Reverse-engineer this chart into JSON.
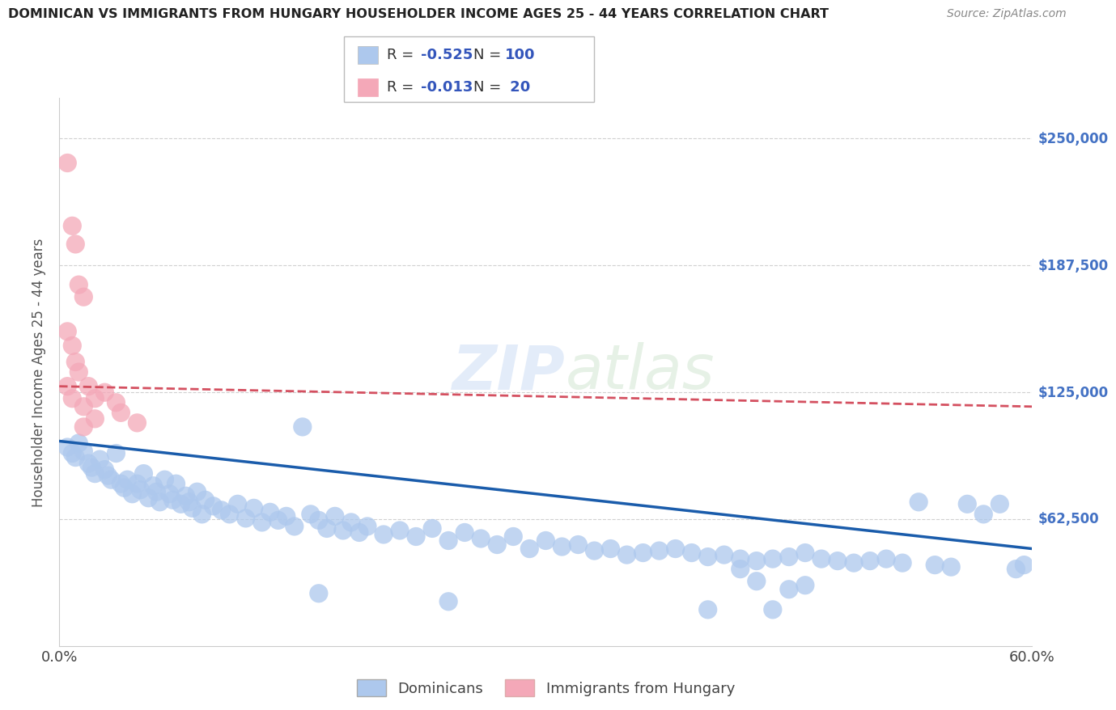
{
  "title": "DOMINICAN VS IMMIGRANTS FROM HUNGARY HOUSEHOLDER INCOME AGES 25 - 44 YEARS CORRELATION CHART",
  "source": "Source: ZipAtlas.com",
  "ylabel": "Householder Income Ages 25 - 44 years",
  "xlim": [
    0.0,
    0.6
  ],
  "ylim": [
    0,
    270000
  ],
  "yticks": [
    0,
    62500,
    125000,
    187500,
    250000
  ],
  "ytick_labels": [
    "",
    "$62,500",
    "$125,000",
    "$187,500",
    "$250,000"
  ],
  "xticks": [
    0.0,
    0.6
  ],
  "xtick_labels": [
    "0.0%",
    "60.0%"
  ],
  "watermark": "ZIPatlas",
  "dominican_color": "#adc8ed",
  "hungary_color": "#f4a8b8",
  "dominican_line_color": "#1a5cab",
  "hungary_line_color": "#d45060",
  "hungary_line_style": "--",
  "background_color": "#ffffff",
  "grid_color": "#d0d0d0",
  "dominican_scatter": [
    [
      0.005,
      98000
    ],
    [
      0.008,
      95000
    ],
    [
      0.01,
      93000
    ],
    [
      0.012,
      100000
    ],
    [
      0.015,
      96000
    ],
    [
      0.018,
      90000
    ],
    [
      0.02,
      88000
    ],
    [
      0.022,
      85000
    ],
    [
      0.025,
      92000
    ],
    [
      0.028,
      87000
    ],
    [
      0.03,
      84000
    ],
    [
      0.032,
      82000
    ],
    [
      0.035,
      95000
    ],
    [
      0.038,
      80000
    ],
    [
      0.04,
      78000
    ],
    [
      0.042,
      82000
    ],
    [
      0.045,
      75000
    ],
    [
      0.048,
      80000
    ],
    [
      0.05,
      77000
    ],
    [
      0.052,
      85000
    ],
    [
      0.055,
      73000
    ],
    [
      0.058,
      79000
    ],
    [
      0.06,
      76000
    ],
    [
      0.062,
      71000
    ],
    [
      0.065,
      82000
    ],
    [
      0.068,
      75000
    ],
    [
      0.07,
      72000
    ],
    [
      0.072,
      80000
    ],
    [
      0.075,
      70000
    ],
    [
      0.078,
      74000
    ],
    [
      0.08,
      71000
    ],
    [
      0.082,
      68000
    ],
    [
      0.085,
      76000
    ],
    [
      0.088,
      65000
    ],
    [
      0.09,
      72000
    ],
    [
      0.095,
      69000
    ],
    [
      0.1,
      67000
    ],
    [
      0.105,
      65000
    ],
    [
      0.11,
      70000
    ],
    [
      0.115,
      63000
    ],
    [
      0.12,
      68000
    ],
    [
      0.125,
      61000
    ],
    [
      0.13,
      66000
    ],
    [
      0.135,
      62000
    ],
    [
      0.14,
      64000
    ],
    [
      0.145,
      59000
    ],
    [
      0.15,
      108000
    ],
    [
      0.155,
      65000
    ],
    [
      0.16,
      62000
    ],
    [
      0.165,
      58000
    ],
    [
      0.17,
      64000
    ],
    [
      0.175,
      57000
    ],
    [
      0.18,
      61000
    ],
    [
      0.185,
      56000
    ],
    [
      0.19,
      59000
    ],
    [
      0.2,
      55000
    ],
    [
      0.21,
      57000
    ],
    [
      0.22,
      54000
    ],
    [
      0.23,
      58000
    ],
    [
      0.24,
      52000
    ],
    [
      0.25,
      56000
    ],
    [
      0.26,
      53000
    ],
    [
      0.27,
      50000
    ],
    [
      0.28,
      54000
    ],
    [
      0.29,
      48000
    ],
    [
      0.3,
      52000
    ],
    [
      0.31,
      49000
    ],
    [
      0.32,
      50000
    ],
    [
      0.33,
      47000
    ],
    [
      0.34,
      48000
    ],
    [
      0.35,
      45000
    ],
    [
      0.36,
      46000
    ],
    [
      0.37,
      47000
    ],
    [
      0.38,
      48000
    ],
    [
      0.39,
      46000
    ],
    [
      0.4,
      44000
    ],
    [
      0.41,
      45000
    ],
    [
      0.42,
      43000
    ],
    [
      0.43,
      42000
    ],
    [
      0.44,
      43000
    ],
    [
      0.45,
      44000
    ],
    [
      0.46,
      46000
    ],
    [
      0.47,
      43000
    ],
    [
      0.48,
      42000
    ],
    [
      0.49,
      41000
    ],
    [
      0.5,
      42000
    ],
    [
      0.51,
      43000
    ],
    [
      0.52,
      41000
    ],
    [
      0.53,
      71000
    ],
    [
      0.54,
      40000
    ],
    [
      0.55,
      39000
    ],
    [
      0.56,
      70000
    ],
    [
      0.57,
      65000
    ],
    [
      0.58,
      70000
    ],
    [
      0.59,
      38000
    ],
    [
      0.595,
      40000
    ],
    [
      0.16,
      26000
    ],
    [
      0.24,
      22000
    ],
    [
      0.4,
      18000
    ],
    [
      0.44,
      18000
    ],
    [
      0.43,
      32000
    ],
    [
      0.45,
      28000
    ],
    [
      0.46,
      30000
    ],
    [
      0.42,
      38000
    ]
  ],
  "hungary_scatter": [
    [
      0.005,
      238000
    ],
    [
      0.008,
      207000
    ],
    [
      0.01,
      198000
    ],
    [
      0.012,
      178000
    ],
    [
      0.015,
      172000
    ],
    [
      0.005,
      155000
    ],
    [
      0.008,
      148000
    ],
    [
      0.01,
      140000
    ],
    [
      0.012,
      135000
    ],
    [
      0.005,
      128000
    ],
    [
      0.008,
      122000
    ],
    [
      0.018,
      128000
    ],
    [
      0.022,
      122000
    ],
    [
      0.028,
      125000
    ],
    [
      0.035,
      120000
    ],
    [
      0.015,
      118000
    ],
    [
      0.022,
      112000
    ],
    [
      0.038,
      115000
    ],
    [
      0.048,
      110000
    ],
    [
      0.015,
      108000
    ]
  ],
  "dom_trend_x": [
    0.0,
    0.6
  ],
  "dom_trend_y": [
    101000,
    48000
  ],
  "hun_trend_x": [
    0.0,
    0.6
  ],
  "hun_trend_y": [
    128000,
    118000
  ]
}
